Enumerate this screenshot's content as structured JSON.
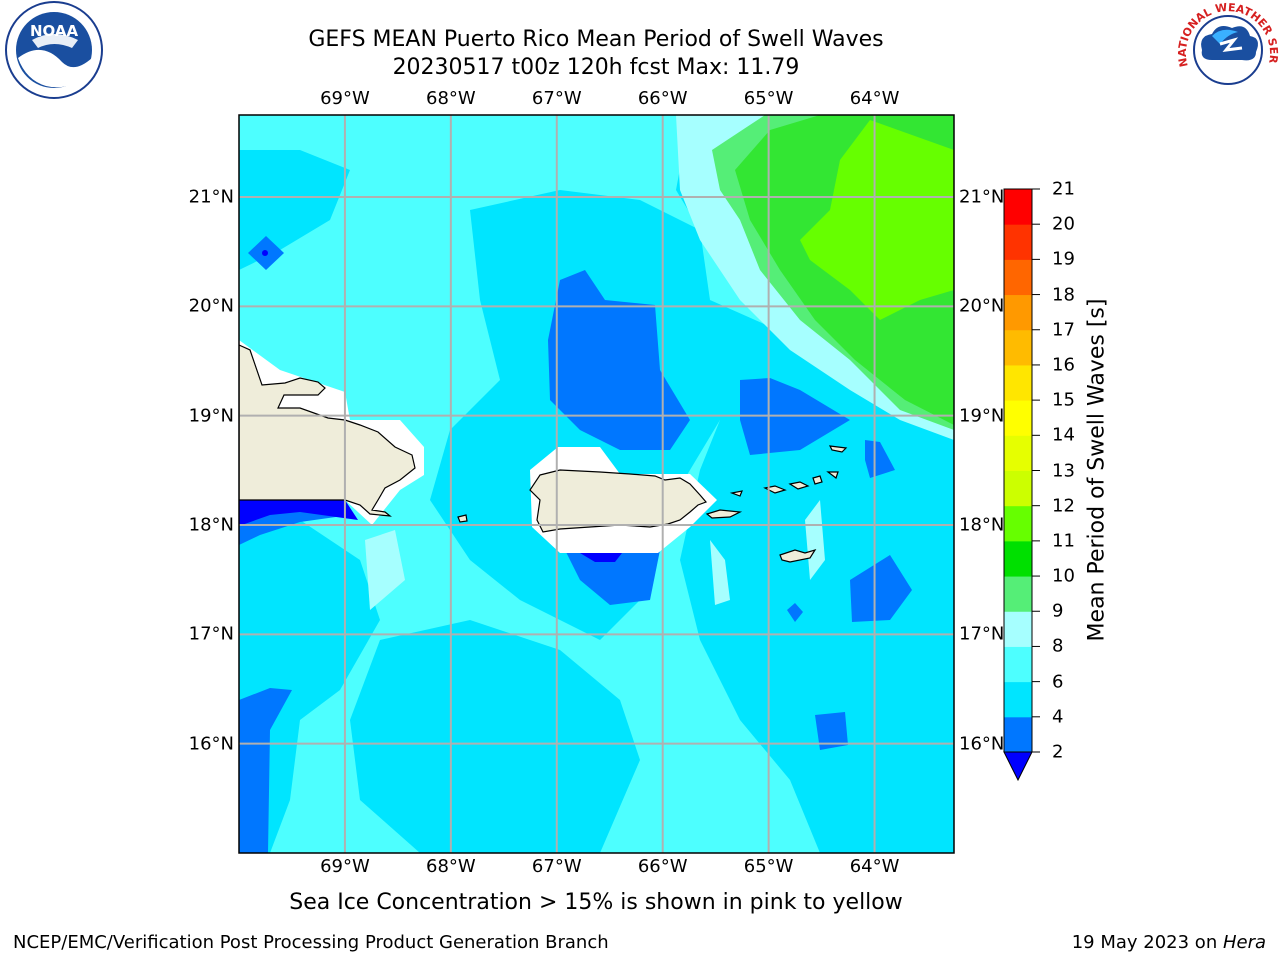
{
  "title": {
    "line1": "GEFS MEAN Puerto Rico Mean Period of Swell Waves",
    "line2": "20230517 t00z 120h fcst   Max: 11.79"
  },
  "map": {
    "lon_labels": [
      "69°W",
      "68°W",
      "67°W",
      "66°W",
      "65°W",
      "64°W"
    ],
    "lat_labels": [
      "21°N",
      "20°N",
      "19°N",
      "18°N",
      "17°N",
      "16°N"
    ],
    "lon_range": [
      -70.0,
      -63.25
    ],
    "lat_range": [
      15.0,
      21.75
    ],
    "colors": {
      "land": "#efedda",
      "ocean_2_4": "#0077ff",
      "ocean_4_6": "#00e5ff",
      "ocean_6_8": "#4dffff",
      "ocean_8_9": "#a6ffff",
      "band_9_10": "#55ee77",
      "band_10_11": "#33e633",
      "band_11_12": "#66ff00",
      "below_2": "#0000ff",
      "grid": "#b0b0b0",
      "ice_mask": "#ffffff"
    }
  },
  "colorbar": {
    "title": "Mean Period of Swell Waves [s]",
    "ticks": [
      "2",
      "4",
      "6",
      "8",
      "9",
      "10",
      "11",
      "12",
      "13",
      "14",
      "15",
      "16",
      "17",
      "18",
      "19",
      "20",
      "21"
    ],
    "colors": [
      "#0077ff",
      "#00e5ff",
      "#4dffff",
      "#a6ffff",
      "#55ee77",
      "#00e000",
      "#66ff00",
      "#ccff00",
      "#e6ff00",
      "#ffff00",
      "#ffe600",
      "#ffbb00",
      "#ff9900",
      "#ff6600",
      "#ff3300",
      "#ff0000"
    ],
    "under_color": "#0000ff"
  },
  "subtitle": "Sea Ice Concentration > 15% is shown in pink to yellow",
  "footer": {
    "left": "NCEP/EMC/Verification Post Processing Product Generation Branch",
    "right_prefix": "19 May 2023 on ",
    "right_host": "Hera"
  },
  "logos": {
    "noaa": "NOAA",
    "nws": "NATIONAL WEATHER SERVICE"
  }
}
